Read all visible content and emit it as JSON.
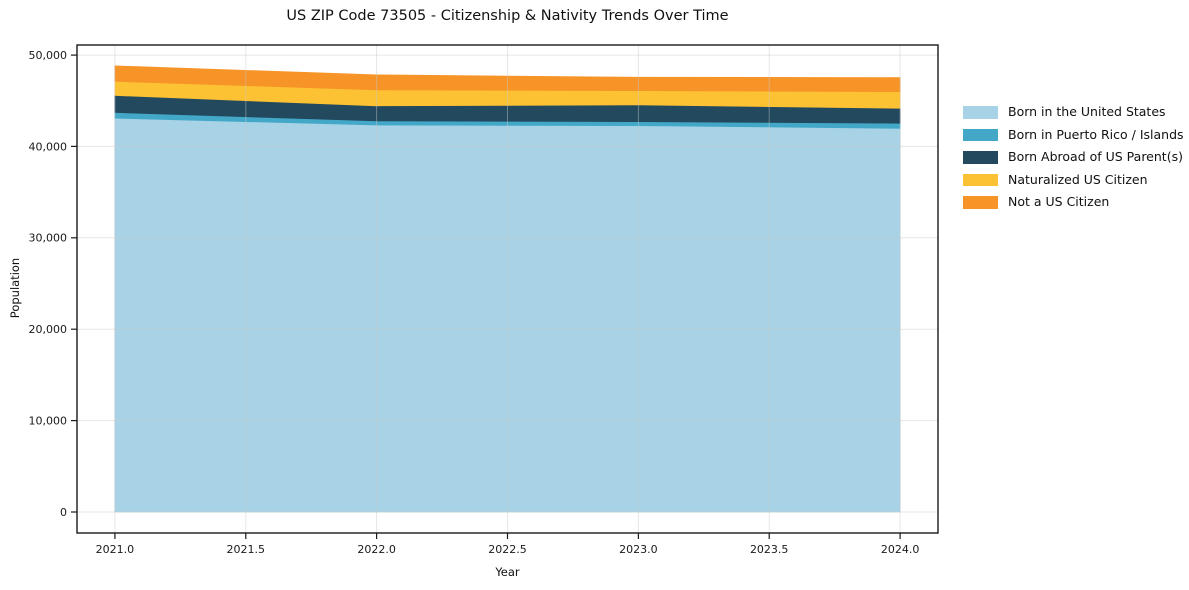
{
  "title": "US ZIP Code 73505 - Citizenship & Nativity Trends Over Time",
  "background_color": "#ffffff",
  "text_color": "#111111",
  "spine_color": "#1a1a1a",
  "grid_color": "#c8c8c8",
  "chart_data": {
    "type": "area",
    "stacked": true,
    "title": "US ZIP Code 73505 - Citizenship & Nativity Trends Over Time",
    "xlabel": "Year",
    "ylabel": "Population",
    "x": [
      2021,
      2022,
      2023,
      2024
    ],
    "series": [
      {
        "name": "Born in the United States",
        "color": "#a8d3e6",
        "values": [
          43100,
          42350,
          42280,
          41990
        ]
      },
      {
        "name": "Born in Puerto Rico / Islands",
        "color": "#43a8c8",
        "values": [
          620,
          450,
          440,
          550
        ]
      },
      {
        "name": "Born Abroad of US Parent(s)",
        "color": "#23495f",
        "values": [
          1870,
          1650,
          1820,
          1640
        ]
      },
      {
        "name": "Naturalized US Citizen",
        "color": "#fdc233",
        "values": [
          1540,
          1750,
          1570,
          1820
        ]
      },
      {
        "name": "Not a US Citizen",
        "color": "#f79428",
        "values": [
          1680,
          1630,
          1460,
          1530
        ]
      }
    ],
    "xlim": [
      2020.855,
      2024.145
    ],
    "ylim": [
      -2300,
      51100
    ],
    "xticks": [
      2021.0,
      2021.5,
      2022.0,
      2022.5,
      2023.0,
      2023.5,
      2024.0
    ],
    "xtick_labels": [
      "2021.0",
      "2021.5",
      "2022.0",
      "2022.5",
      "2023.0",
      "2023.5",
      "2024.0"
    ],
    "yticks": [
      0,
      10000,
      20000,
      30000,
      40000,
      50000
    ],
    "ytick_labels": [
      "0",
      "10,000",
      "20,000",
      "30,000",
      "40,000",
      "50,000"
    ],
    "grid": true,
    "legend_position": "right"
  }
}
